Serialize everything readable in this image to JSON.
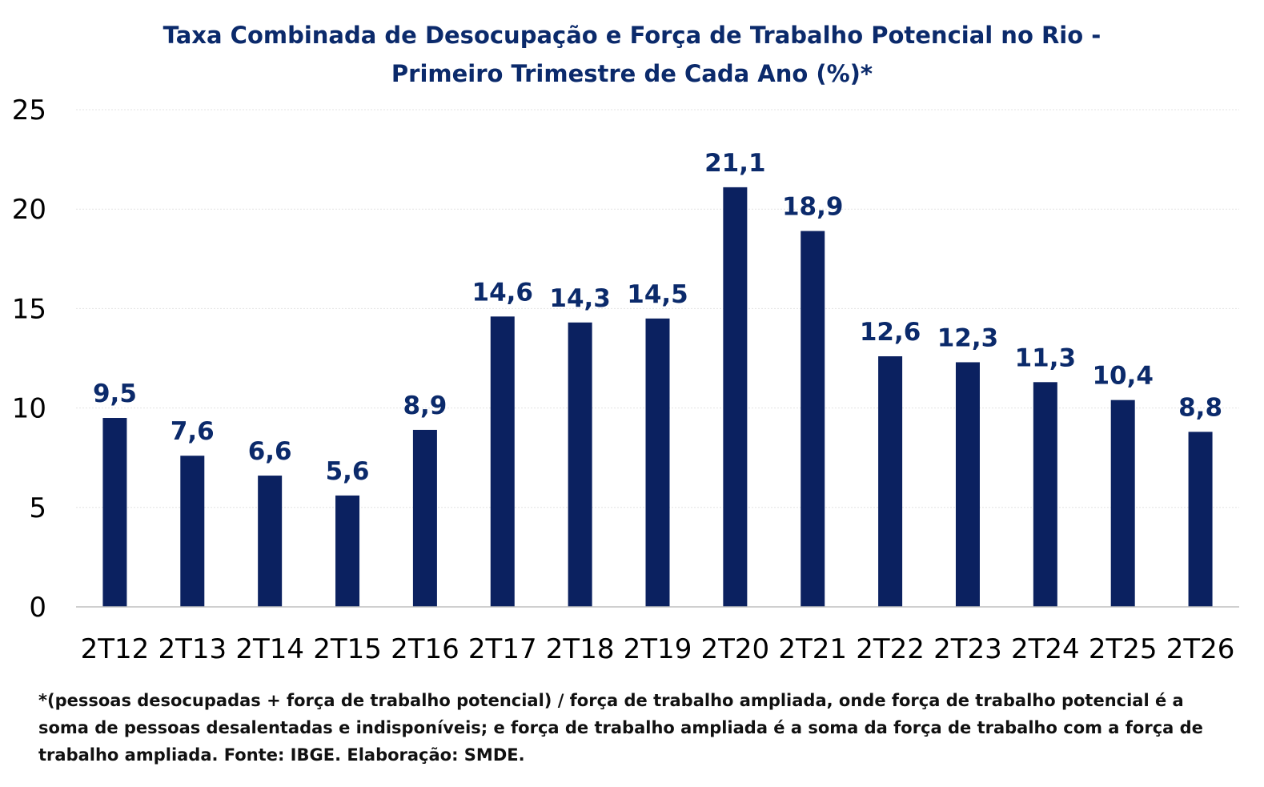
{
  "chart_data": {
    "type": "bar",
    "title": "Taxa Combinada de Desocupação e Força de Trabalho Potencial no Rio - Primeiro Trimestre de Cada Ano (%)*",
    "title_lines": [
      "Taxa Combinada de Desocupação e Força de Trabalho Potencial no Rio -",
      "Primeiro Trimestre de Cada Ano (%)*"
    ],
    "categories": [
      "2T12",
      "2T13",
      "2T14",
      "2T15",
      "2T16",
      "2T17",
      "2T18",
      "2T19",
      "2T20",
      "2T21",
      "2T22",
      "2T23",
      "2T24",
      "2T25",
      "2T26"
    ],
    "values": [
      9.5,
      7.6,
      6.6,
      5.6,
      8.9,
      14.6,
      14.3,
      14.5,
      21.1,
      18.9,
      12.6,
      12.3,
      11.3,
      10.4,
      8.8
    ],
    "data_labels": [
      "9,5",
      "7,6",
      "6,6",
      "5,6",
      "8,9",
      "14,6",
      "14,3",
      "14,5",
      "21,1",
      "18,9",
      "12,6",
      "12,3",
      "11,3",
      "10,4",
      "8,8"
    ],
    "y_ticks": [
      "0",
      "5",
      "10",
      "15",
      "20",
      "25"
    ],
    "ylim": [
      0,
      25
    ],
    "xlabel": "",
    "ylabel": "",
    "grid": true,
    "legend": "none",
    "bar_color": "#0b2160",
    "label_color": "#0b2a6b",
    "title_color": "#0b2a6b"
  },
  "footnote": {
    "lines": [
      "*(pessoas desocupadas + força de trabalho potencial) / força de trabalho ampliada, onde força de trabalho potencial é a",
      "soma de pessoas desalentadas e indisponíveis; e força de trabalho ampliada é a soma da força de trabalho com a força de",
      "trabalho ampliada. Fonte: IBGE. Elaboração: SMDE."
    ]
  }
}
